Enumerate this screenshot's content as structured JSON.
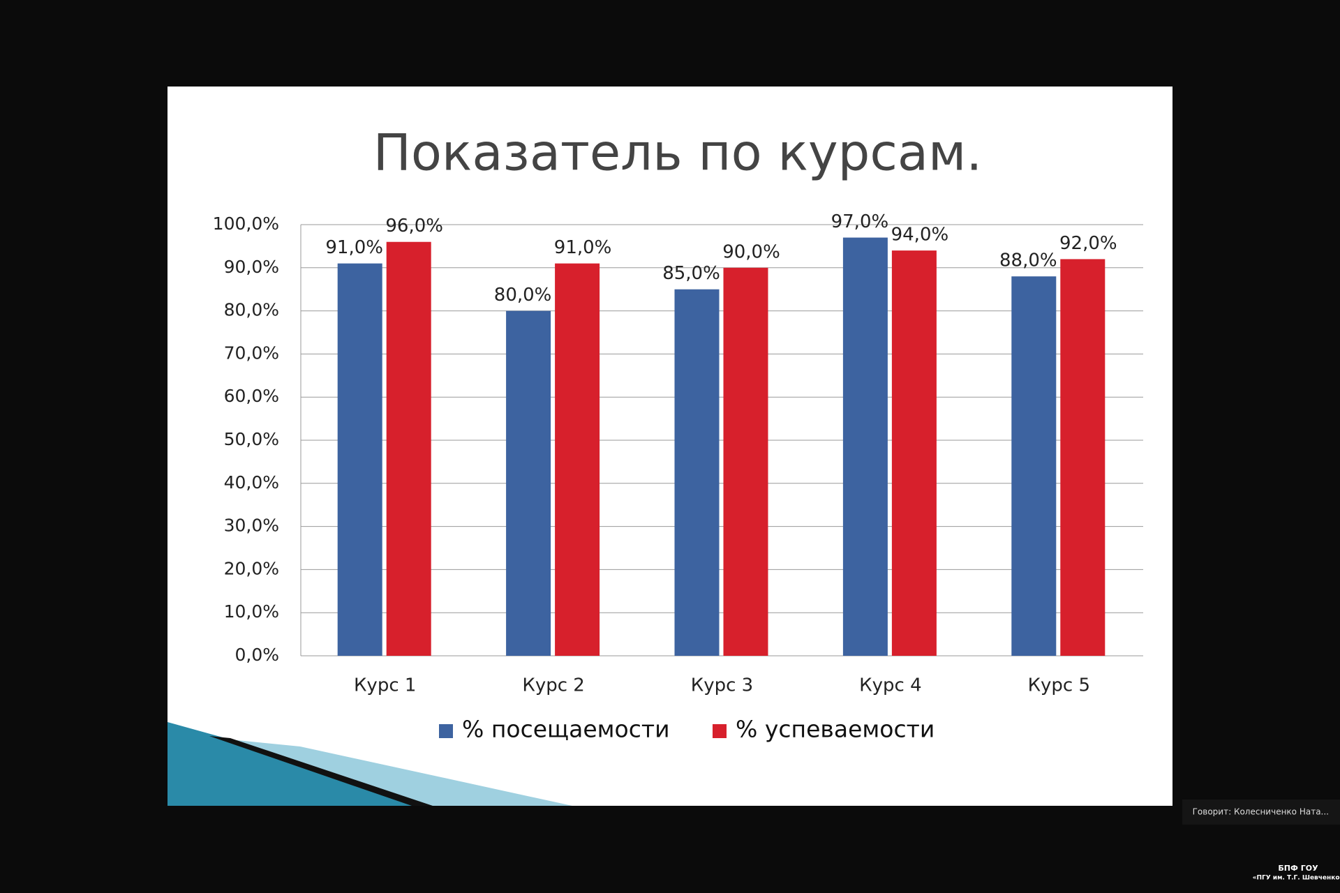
{
  "chart_data": {
    "type": "bar",
    "title": "Показатель по курсам.",
    "categories": [
      "Курс 1",
      "Курс 2",
      "Курс 3",
      "Курс 4",
      "Курс 5"
    ],
    "series": [
      {
        "name": "% посещаемости",
        "color": "#3d63a0",
        "values": [
          91,
          80,
          85,
          97,
          88
        ],
        "value_labels": [
          "91,0%",
          "80,0%",
          "85,0%",
          "97,0%",
          "88,0%"
        ]
      },
      {
        "name": "% успеваемости",
        "color": "#d7202c",
        "values": [
          96,
          91,
          90,
          94,
          92
        ],
        "value_labels": [
          "96,0%",
          "91,0%",
          "90,0%",
          "94,0%",
          "92,0%"
        ]
      }
    ],
    "ylim": [
      0,
      100
    ],
    "yticks": [
      {
        "value": 0,
        "label": "0,0%"
      },
      {
        "value": 10,
        "label": "10,0%"
      },
      {
        "value": 20,
        "label": "20,0%"
      },
      {
        "value": 30,
        "label": "30,0%"
      },
      {
        "value": 40,
        "label": "40,0%"
      },
      {
        "value": 50,
        "label": "50,0%"
      },
      {
        "value": 60,
        "label": "60,0%"
      },
      {
        "value": 70,
        "label": "70,0%"
      },
      {
        "value": 80,
        "label": "80,0%"
      },
      {
        "value": 90,
        "label": "90,0%"
      },
      {
        "value": 100,
        "label": "100,0%"
      }
    ],
    "grid": true,
    "legend": "bottom"
  },
  "overlay": {
    "speaker": "Говорит: Колесниченко Ната...",
    "org_line1": "БПФ ГОУ",
    "org_line2": "«ПГУ им. Т.Г. Шевченко»"
  }
}
